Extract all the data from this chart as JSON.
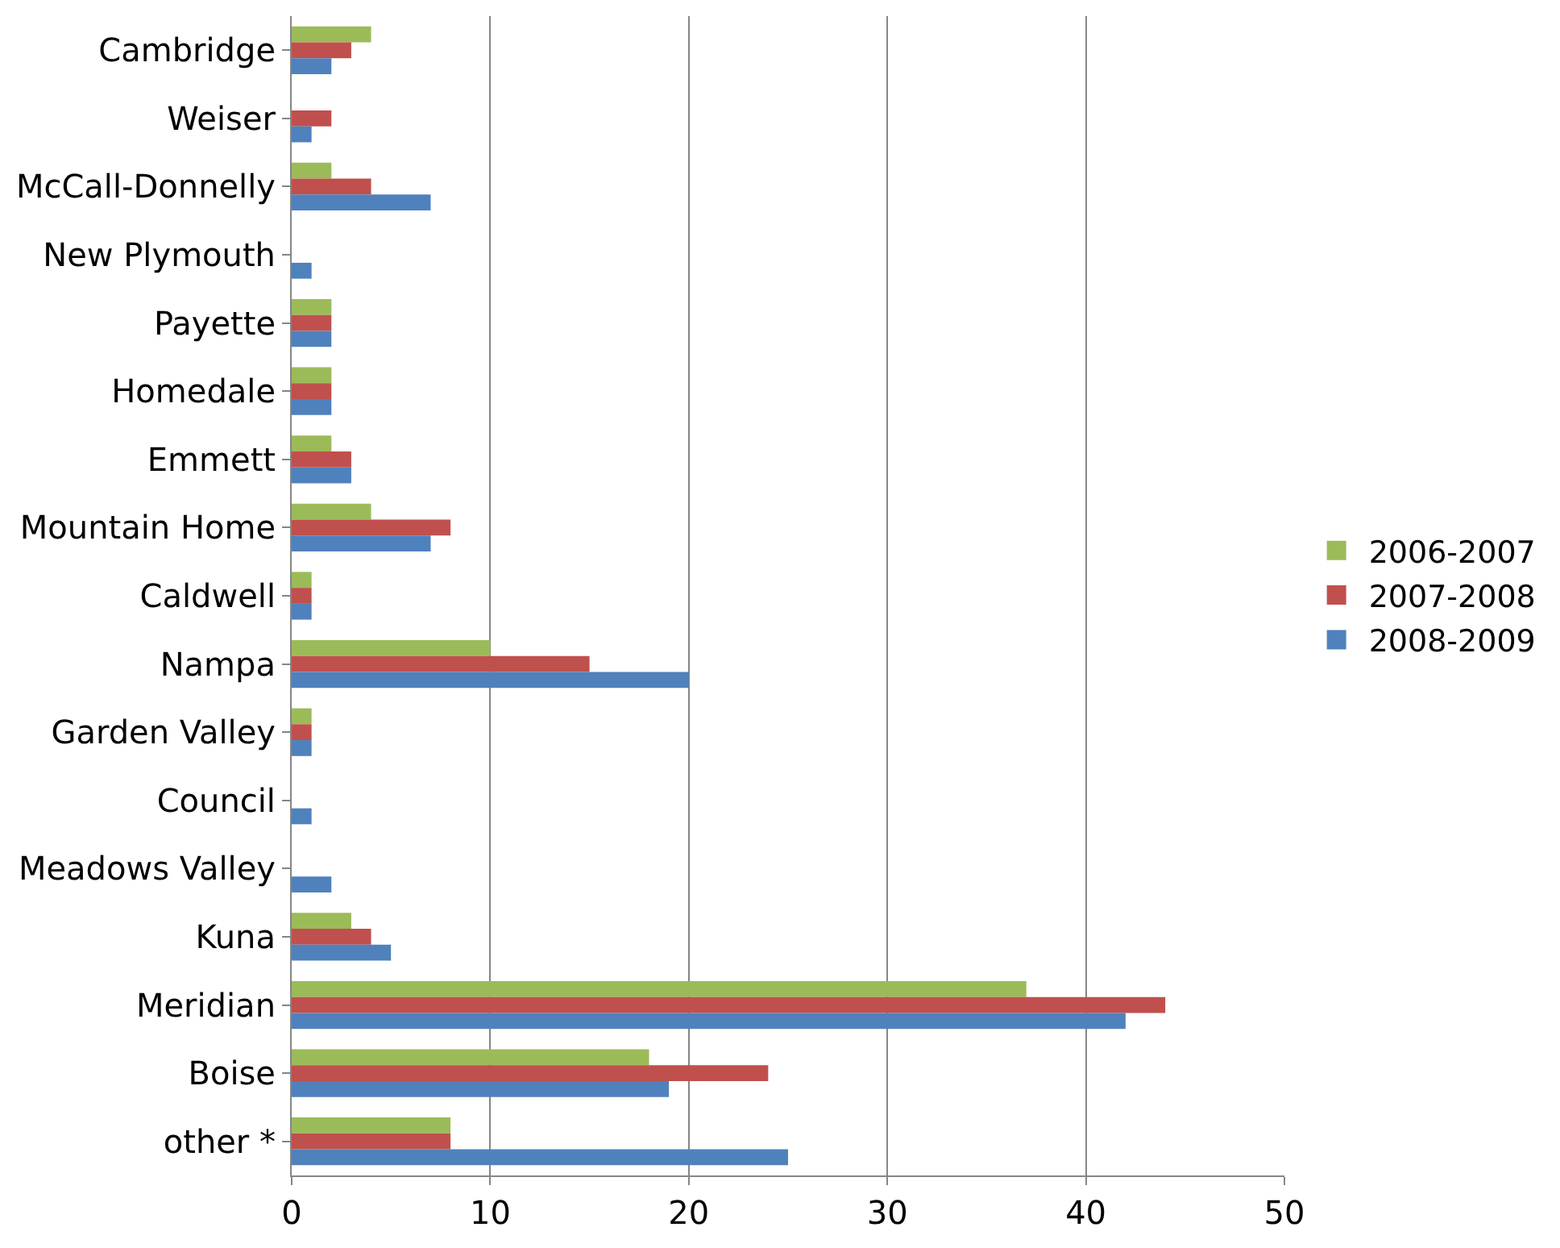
{
  "chart_data": {
    "type": "bar",
    "orientation": "horizontal",
    "categories": [
      "Cambridge",
      "Weiser",
      "McCall-Donnelly",
      "New Plymouth",
      "Payette",
      "Homedale",
      "Emmett",
      "Mountain Home",
      "Caldwell",
      "Nampa",
      "Garden Valley",
      "Council",
      "Meadows Valley",
      "Kuna",
      "Meridian",
      "Boise",
      "other *"
    ],
    "series": [
      {
        "name": "2006-2007",
        "color": "#9bbb59",
        "values": [
          4,
          0,
          2,
          0,
          2,
          2,
          2,
          4,
          1,
          10,
          1,
          0,
          0,
          3,
          37,
          18,
          8
        ]
      },
      {
        "name": "2007-2008",
        "color": "#c0504d",
        "values": [
          3,
          2,
          4,
          0,
          2,
          2,
          3,
          8,
          1,
          15,
          1,
          0,
          0,
          4,
          44,
          24,
          8
        ]
      },
      {
        "name": "2008-2009",
        "color": "#4f81bd",
        "values": [
          2,
          1,
          7,
          1,
          2,
          2,
          3,
          7,
          1,
          20,
          1,
          1,
          2,
          5,
          42,
          19,
          25
        ]
      }
    ],
    "xlim": [
      0,
      50
    ],
    "xticks": [
      0,
      10,
      20,
      30,
      40,
      50
    ],
    "grid": "x",
    "legend": "right"
  }
}
